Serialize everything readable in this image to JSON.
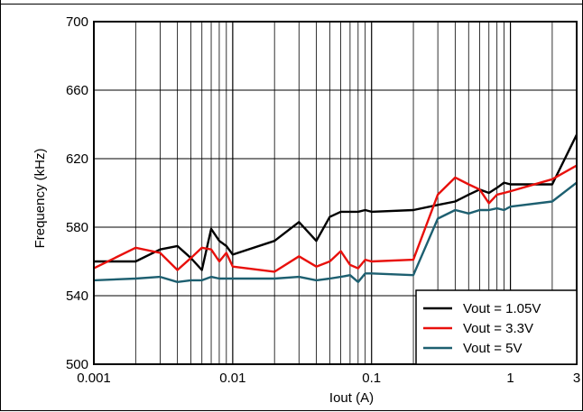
{
  "chart_data": {
    "type": "line",
    "title": "",
    "xlabel": "Iout (A)",
    "ylabel": "Frequency (kHz)",
    "x_scale": "log",
    "xlim": [
      0.001,
      3
    ],
    "ylim": [
      500,
      700
    ],
    "x_ticks": [
      0.001,
      0.01,
      0.1,
      1,
      3
    ],
    "x_tick_labels": [
      "0.001",
      "0.01",
      "0.1",
      "1",
      "3"
    ],
    "y_ticks": [
      500,
      540,
      580,
      620,
      660,
      700
    ],
    "y_tick_labels": [
      "500",
      "540",
      "580",
      "620",
      "660",
      "700"
    ],
    "grid": true,
    "legend_position": "bottom-right",
    "series": [
      {
        "name": "Vout = 1.05V",
        "color": "#000000",
        "x": [
          0.001,
          0.002,
          0.003,
          0.004,
          0.005,
          0.006,
          0.007,
          0.008,
          0.009,
          0.01,
          0.02,
          0.03,
          0.04,
          0.05,
          0.06,
          0.07,
          0.08,
          0.09,
          0.1,
          0.2,
          0.3,
          0.4,
          0.5,
          0.6,
          0.7,
          0.8,
          0.9,
          1,
          2,
          3
        ],
        "y": [
          560,
          560,
          567,
          569,
          562,
          555,
          579,
          572,
          569,
          564,
          572,
          583,
          572,
          586,
          589,
          589,
          589,
          590,
          589,
          590,
          593,
          595,
          599,
          602,
          600,
          603,
          606,
          605,
          605,
          634
        ]
      },
      {
        "name": "Vout = 3.3V",
        "color": "#e8100c",
        "x": [
          0.001,
          0.002,
          0.003,
          0.004,
          0.005,
          0.006,
          0.007,
          0.008,
          0.009,
          0.01,
          0.02,
          0.03,
          0.04,
          0.05,
          0.06,
          0.07,
          0.08,
          0.09,
          0.1,
          0.2,
          0.3,
          0.4,
          0.5,
          0.6,
          0.7,
          0.8,
          0.9,
          1,
          2,
          3
        ],
        "y": [
          556,
          568,
          565,
          555,
          562,
          568,
          567,
          560,
          565,
          557,
          554,
          563,
          557,
          560,
          566,
          558,
          556,
          561,
          560,
          561,
          599,
          609,
          605,
          602,
          594,
          599,
          600,
          601,
          608,
          616
        ]
      },
      {
        "name": "Vout = 5V",
        "color": "#1d5f70",
        "x": [
          0.001,
          0.002,
          0.003,
          0.004,
          0.005,
          0.006,
          0.007,
          0.008,
          0.009,
          0.01,
          0.02,
          0.03,
          0.04,
          0.05,
          0.06,
          0.07,
          0.08,
          0.09,
          0.1,
          0.2,
          0.3,
          0.4,
          0.5,
          0.6,
          0.7,
          0.8,
          0.9,
          1,
          2,
          3
        ],
        "y": [
          549,
          550,
          551,
          548,
          549,
          549,
          551,
          550,
          550,
          550,
          550,
          551,
          549,
          550,
          551,
          552,
          548,
          553,
          553,
          552,
          585,
          590,
          588,
          590,
          590,
          591,
          590,
          592,
          595,
          606
        ]
      }
    ]
  }
}
